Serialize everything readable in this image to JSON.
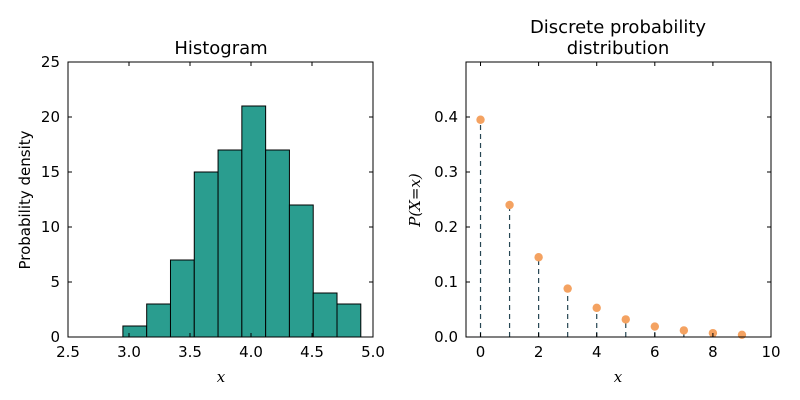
{
  "chart_data": [
    {
      "type": "bar",
      "title": "Histogram",
      "xlabel": "x",
      "ylabel": "Probability density",
      "xlim": [
        2.5,
        5.0
      ],
      "ylim": [
        0,
        25
      ],
      "xticks": [
        "2.5",
        "3.0",
        "3.5",
        "4.0",
        "4.5",
        "5.0"
      ],
      "yticks": [
        "0",
        "5",
        "10",
        "15",
        "20",
        "25"
      ],
      "bin_edges": [
        2.95,
        3.145,
        3.34,
        3.535,
        3.73,
        3.925,
        4.12,
        4.315,
        4.51,
        4.705,
        4.9
      ],
      "values": [
        1,
        3,
        7,
        15,
        17,
        21,
        17,
        12,
        4,
        3
      ],
      "colors": {
        "bar": "#2a9d8f",
        "edge": "#000000"
      }
    },
    {
      "type": "scatter",
      "title": "Discrete probability distribution",
      "title_lines": [
        "Discrete probability",
        "distribution"
      ],
      "xlabel": "x",
      "ylabel": "P(X=x)",
      "xlim": [
        -0.5,
        10
      ],
      "ylim": [
        0,
        0.5
      ],
      "xticks": [
        "0",
        "2",
        "4",
        "6",
        "8",
        "10"
      ],
      "yticks": [
        "0.0",
        "0.1",
        "0.2",
        "0.3",
        "0.4"
      ],
      "x": [
        0,
        1,
        2,
        3,
        4,
        5,
        6,
        7,
        8,
        9
      ],
      "y": [
        0.395,
        0.24,
        0.145,
        0.088,
        0.053,
        0.032,
        0.019,
        0.012,
        0.007,
        0.004
      ],
      "colors": {
        "marker": "#f4a261",
        "stem": "#264653"
      }
    }
  ]
}
